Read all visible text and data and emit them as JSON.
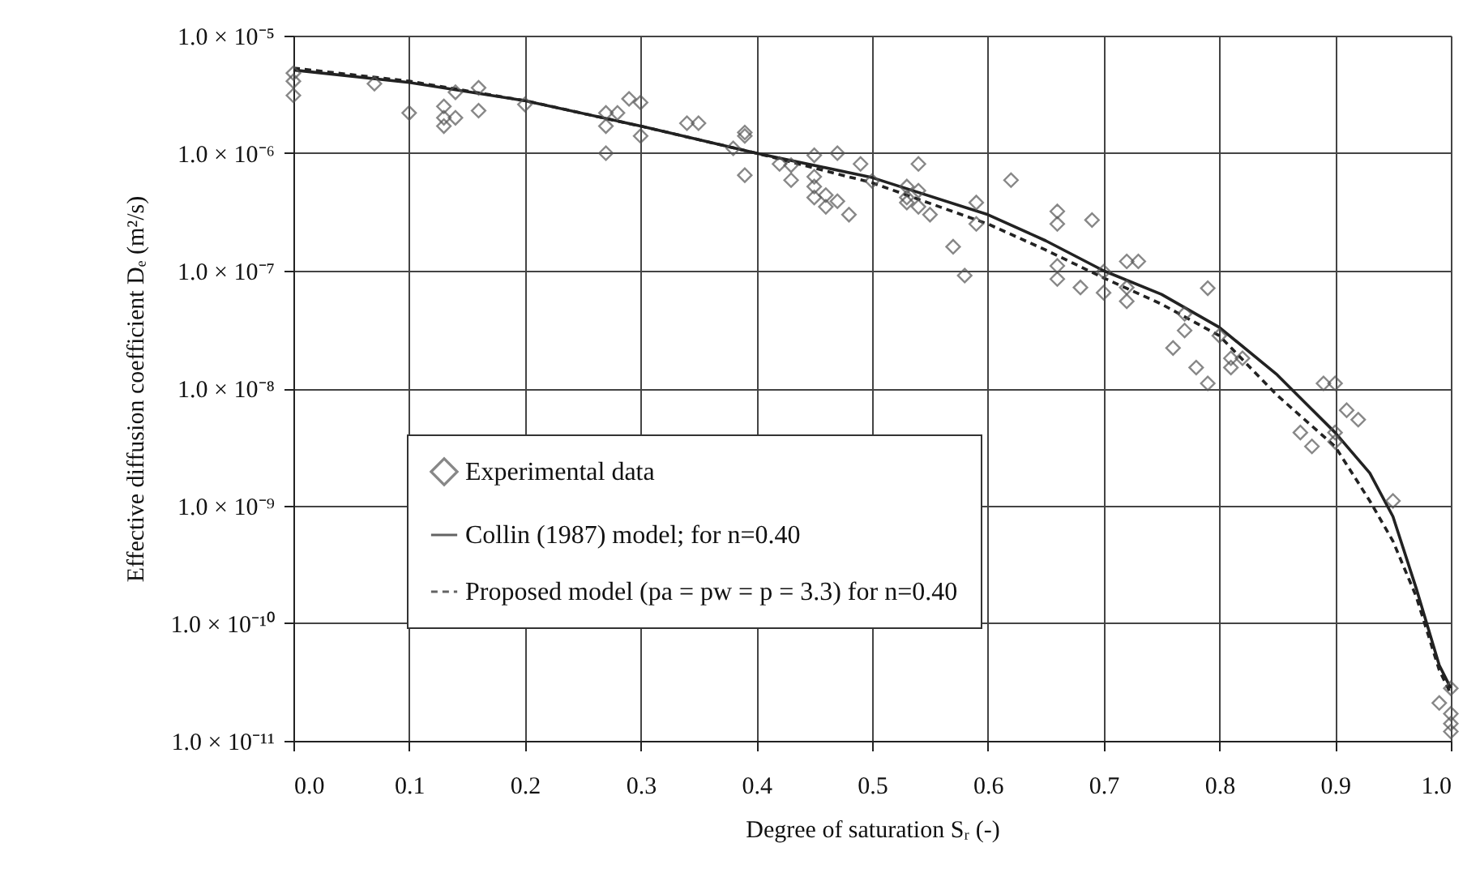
{
  "chart_data": {
    "type": "scatter",
    "xlabel": "Degree of saturation Sᵣ (-)",
    "ylabel": "Effective diffusion coefficient Dₑ (m²/s)",
    "xlim": [
      0,
      1
    ],
    "xticks": [
      {
        "value": 0,
        "label": "0.0"
      },
      0.1,
      0.2,
      0.3,
      0.4,
      0.5,
      0.6,
      0.7,
      0.8,
      0.9,
      {
        "value": 1,
        "label": "1.0"
      }
    ],
    "ylim": [
      1e-11,
      1e-05
    ],
    "log": "y",
    "yticks": [
      {
        "value": 1e-11,
        "label": "1.0 × 10⁻¹¹"
      },
      {
        "value": 1e-10,
        "label": "1.0 × 10⁻¹⁰"
      },
      {
        "value": 1e-09,
        "label": "1.0 × 10⁻⁹"
      },
      {
        "value": 1e-08,
        "label": "1.0 × 10⁻⁸"
      },
      {
        "value": 1e-07,
        "label": "1.0 × 10⁻⁷"
      },
      {
        "value": 1e-06,
        "label": "1.0 × 10⁻⁶"
      },
      {
        "value": 1e-05,
        "label": "1.0 × 10⁻⁵"
      }
    ],
    "grid": true,
    "legend": "bottom left",
    "series": [
      {
        "name": "Experimental data",
        "type": "scatter",
        "marker": "diamond",
        "color": "#555555",
        "x": [
          0.0,
          0.0,
          0.0,
          0.07,
          0.1,
          0.13,
          0.13,
          0.13,
          0.14,
          0.14,
          0.16,
          0.16,
          0.2,
          0.27,
          0.27,
          0.28,
          0.29,
          0.3,
          0.3,
          0.27,
          0.34,
          0.35,
          0.38,
          0.39,
          0.39,
          0.39,
          0.42,
          0.43,
          0.43,
          0.45,
          0.45,
          0.45,
          0.45,
          0.46,
          0.46,
          0.47,
          0.47,
          0.48,
          0.49,
          0.5,
          0.53,
          0.54,
          0.53,
          0.53,
          0.54,
          0.54,
          0.55,
          0.57,
          0.58,
          0.59,
          0.59,
          0.62,
          0.66,
          0.66,
          0.69,
          0.66,
          0.66,
          0.68,
          0.7,
          0.7,
          0.72,
          0.72,
          0.72,
          0.73,
          0.77,
          0.79,
          0.77,
          0.76,
          0.8,
          0.78,
          0.79,
          0.81,
          0.81,
          0.82,
          0.89,
          0.9,
          0.91,
          0.92,
          0.87,
          0.88,
          0.9,
          0.9,
          0.95,
          1.0,
          0.99,
          1.0,
          1.0,
          1.0
        ],
        "values": [
          4.8e-06,
          4.1e-06,
          3.1e-06,
          3.9e-06,
          2.2e-06,
          2.5e-06,
          1.7e-06,
          2e-06,
          3.3e-06,
          2e-06,
          3.6e-06,
          2.3e-06,
          2.6e-06,
          1.7e-06,
          2.2e-06,
          2.2e-06,
          2.9e-06,
          2.7e-06,
          1.4e-06,
          1e-06,
          1.8e-06,
          1.8e-06,
          1.1e-06,
          1.5e-06,
          1.4e-06,
          6.5e-07,
          8.1e-07,
          7.9e-07,
          5.9e-07,
          5.2e-07,
          9.6e-07,
          6.3e-07,
          4.2e-07,
          3.5e-07,
          4.4e-07,
          1e-06,
          3.9e-07,
          3e-07,
          8.1e-07,
          5.8e-07,
          5.2e-07,
          8.1e-07,
          4.2e-07,
          3.8e-07,
          4.8e-07,
          3.5e-07,
          3e-07,
          1.6e-07,
          9.1e-08,
          2.5e-07,
          3.8e-07,
          5.9e-07,
          3.2e-07,
          2.5e-07,
          2.7e-07,
          1.1e-07,
          8.5e-08,
          7.2e-08,
          9.8e-08,
          6.5e-08,
          7.2e-08,
          5.5e-08,
          1.2e-07,
          1.2e-07,
          4.3e-08,
          7.1e-08,
          3.1e-08,
          2.2e-08,
          2.8e-08,
          1.5e-08,
          1.1e-08,
          1.5e-08,
          1.8e-08,
          1.8e-08,
          1.1e-08,
          1.1e-08,
          6.5e-09,
          5.4e-09,
          4.2e-09,
          3.2e-09,
          4.2e-09,
          3.5e-09,
          1.1e-09,
          2.8e-11,
          2.1e-11,
          1.7e-11,
          1.4e-11,
          1.2e-11
        ]
      },
      {
        "name": "Collin (1987) model; for n=0.40",
        "type": "line",
        "line_style": "solid",
        "marker": "none",
        "color": "#222222",
        "x": [
          0,
          0.1,
          0.2,
          0.3,
          0.4,
          0.5,
          0.6,
          0.65,
          0.7,
          0.75,
          0.8,
          0.85,
          0.9,
          0.93,
          0.95,
          0.97,
          0.99,
          1.0
        ],
        "values": [
          5.1e-06,
          4e-06,
          2.8e-06,
          1.7e-06,
          1e-06,
          6.2e-07,
          3e-07,
          1.8e-07,
          1e-07,
          6.3e-08,
          3.3e-08,
          1.3e-08,
          4.2e-09,
          1.9e-09,
          8.1e-10,
          2e-10,
          4.4e-11,
          2.8e-11
        ]
      },
      {
        "name": "Proposed model (pa = pw = p = 3.3) for n=0.40",
        "type": "line",
        "line_style": "dashed",
        "marker": "none",
        "color": "#222222",
        "x": [
          0,
          0.1,
          0.2,
          0.3,
          0.4,
          0.5,
          0.6,
          0.65,
          0.7,
          0.75,
          0.8,
          0.85,
          0.9,
          0.93,
          0.95,
          0.97,
          0.99,
          1.0
        ],
        "values": [
          5.3e-06,
          4.1e-06,
          2.8e-06,
          1.7e-06,
          1e-06,
          5.6e-07,
          2.5e-07,
          1.5e-07,
          8.7e-08,
          5.2e-08,
          2.8e-08,
          8.7e-09,
          3.2e-09,
          1.1e-09,
          5e-10,
          1.7e-10,
          4e-11,
          2.5e-11
        ]
      }
    ]
  }
}
